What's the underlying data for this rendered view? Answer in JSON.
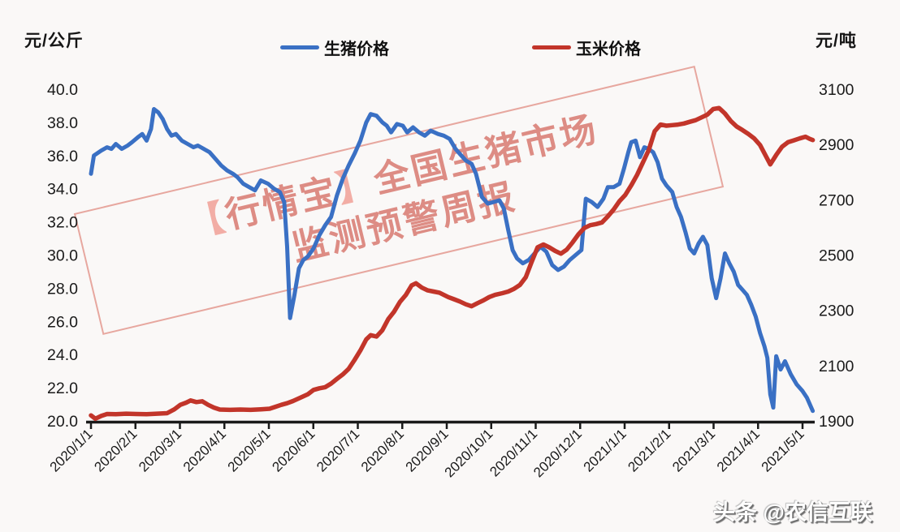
{
  "units": {
    "left": "元/公斤",
    "right": "元/吨"
  },
  "watermark": {
    "bracket_open": "【",
    "brand": "行情宝",
    "bracket_close": "】",
    "line1_rest": "全国生猪市场",
    "line2": "监测预警周报"
  },
  "credit": "头条 @农信互联",
  "colors": {
    "pig_line": "#3a70c4",
    "corn_line": "#c2352a",
    "axis": "#1a1a1a",
    "background": "#faf8f7",
    "watermark_pink": "#d67066"
  },
  "chart_data": {
    "type": "line",
    "title": "",
    "legend_position": "top",
    "grid": false,
    "x_axis": {
      "labels": [
        "2020/1/1",
        "2020/2/1",
        "2020/3/1",
        "2020/4/1",
        "2020/5/1",
        "2020/6/1",
        "2020/7/1",
        "2020/8/1",
        "2020/9/1",
        "2020/10/1",
        "2020/11/1",
        "2020/12/1",
        "2021/1/1",
        "2021/2/1",
        "2021/3/1",
        "2021/4/1",
        "2021/5/1"
      ]
    },
    "left_axis": {
      "label": "元/公斤",
      "min": 20,
      "max": 40,
      "ticks": [
        "40.0",
        "38.0",
        "36.0",
        "34.0",
        "32.0",
        "30.0",
        "28.0",
        "26.0",
        "24.0",
        "22.0",
        "20.0"
      ]
    },
    "right_axis": {
      "label": "元/吨",
      "min": 1900,
      "max": 3100,
      "ticks": [
        "3100",
        "2900",
        "2700",
        "2500",
        "2300",
        "2100",
        "1900"
      ]
    },
    "series": [
      {
        "name": "生猪价格",
        "axis": "left",
        "color": "#3a70c4",
        "unit": "元/公斤",
        "points": [
          [
            "2020/1/1",
            34.9
          ],
          [
            "2020/1/3",
            36.0
          ],
          [
            "2020/1/8",
            36.3
          ],
          [
            "2020/1/12",
            36.5
          ],
          [
            "2020/1/15",
            36.4
          ],
          [
            "2020/1/18",
            36.7
          ],
          [
            "2020/1/22",
            36.4
          ],
          [
            "2020/1/26",
            36.6
          ],
          [
            "2020/1/29",
            36.8
          ],
          [
            "2020/2/2",
            37.1
          ],
          [
            "2020/2/5",
            37.3
          ],
          [
            "2020/2/8",
            36.9
          ],
          [
            "2020/2/11",
            37.6
          ],
          [
            "2020/2/13",
            38.8
          ],
          [
            "2020/2/16",
            38.6
          ],
          [
            "2020/2/19",
            38.2
          ],
          [
            "2020/2/22",
            37.6
          ],
          [
            "2020/2/25",
            37.2
          ],
          [
            "2020/2/28",
            37.3
          ],
          [
            "2020/3/3",
            36.9
          ],
          [
            "2020/3/7",
            36.7
          ],
          [
            "2020/3/11",
            36.5
          ],
          [
            "2020/3/14",
            36.6
          ],
          [
            "2020/3/18",
            36.4
          ],
          [
            "2020/3/22",
            36.2
          ],
          [
            "2020/3/26",
            35.8
          ],
          [
            "2020/3/30",
            35.4
          ],
          [
            "2020/4/3",
            35.1
          ],
          [
            "2020/4/7",
            34.9
          ],
          [
            "2020/4/10",
            34.7
          ],
          [
            "2020/4/14",
            34.3
          ],
          [
            "2020/4/18",
            34.1
          ],
          [
            "2020/4/22",
            33.9
          ],
          [
            "2020/4/26",
            34.5
          ],
          [
            "2020/5/1",
            34.3
          ],
          [
            "2020/5/5",
            34.0
          ],
          [
            "2020/5/9",
            33.8
          ],
          [
            "2020/5/12",
            33.2
          ],
          [
            "2020/5/14",
            30.5
          ],
          [
            "2020/5/16",
            26.2
          ],
          [
            "2020/5/19",
            27.6
          ],
          [
            "2020/5/22",
            29.2
          ],
          [
            "2020/5/25",
            29.7
          ],
          [
            "2020/5/28",
            29.9
          ],
          [
            "2020/6/1",
            30.4
          ],
          [
            "2020/6/5",
            31.2
          ],
          [
            "2020/6/9",
            31.8
          ],
          [
            "2020/6/13",
            32.3
          ],
          [
            "2020/6/17",
            33.6
          ],
          [
            "2020/6/21",
            34.6
          ],
          [
            "2020/6/25",
            35.4
          ],
          [
            "2020/6/29",
            36.1
          ],
          [
            "2020/7/3",
            36.9
          ],
          [
            "2020/7/7",
            38.0
          ],
          [
            "2020/7/10",
            38.5
          ],
          [
            "2020/7/14",
            38.4
          ],
          [
            "2020/7/18",
            38.0
          ],
          [
            "2020/7/21",
            37.8
          ],
          [
            "2020/7/24",
            37.4
          ],
          [
            "2020/7/28",
            37.9
          ],
          [
            "2020/8/1",
            37.8
          ],
          [
            "2020/8/4",
            37.4
          ],
          [
            "2020/8/8",
            37.7
          ],
          [
            "2020/8/12",
            37.4
          ],
          [
            "2020/8/16",
            37.2
          ],
          [
            "2020/8/20",
            37.5
          ],
          [
            "2020/8/25",
            37.3
          ],
          [
            "2020/8/29",
            37.2
          ],
          [
            "2020/9/2",
            37.0
          ],
          [
            "2020/9/6",
            36.4
          ],
          [
            "2020/9/9",
            36.1
          ],
          [
            "2020/9/13",
            35.7
          ],
          [
            "2020/9/17",
            35.5
          ],
          [
            "2020/9/20",
            34.9
          ],
          [
            "2020/9/24",
            33.5
          ],
          [
            "2020/9/28",
            33.1
          ],
          [
            "2020/10/2",
            33.2
          ],
          [
            "2020/10/6",
            33.3
          ],
          [
            "2020/10/9",
            32.8
          ],
          [
            "2020/10/12",
            31.5
          ],
          [
            "2020/10/15",
            30.3
          ],
          [
            "2020/10/18",
            29.8
          ],
          [
            "2020/10/22",
            29.5
          ],
          [
            "2020/10/26",
            29.7
          ],
          [
            "2020/10/30",
            30.1
          ],
          [
            "2020/11/3",
            30.5
          ],
          [
            "2020/11/7",
            30.2
          ],
          [
            "2020/11/11",
            29.4
          ],
          [
            "2020/11/15",
            29.1
          ],
          [
            "2020/11/19",
            29.3
          ],
          [
            "2020/11/23",
            29.7
          ],
          [
            "2020/11/27",
            30.0
          ],
          [
            "2020/12/1",
            30.3
          ],
          [
            "2020/12/4",
            33.4
          ],
          [
            "2020/12/8",
            33.2
          ],
          [
            "2020/12/12",
            32.9
          ],
          [
            "2020/12/16",
            33.4
          ],
          [
            "2020/12/19",
            34.1
          ],
          [
            "2020/12/23",
            34.1
          ],
          [
            "2020/12/27",
            34.3
          ],
          [
            "2020/12/30",
            35.2
          ],
          [
            "2021/1/2",
            36.2
          ],
          [
            "2021/1/4",
            36.8
          ],
          [
            "2021/1/7",
            36.9
          ],
          [
            "2021/1/10",
            35.9
          ],
          [
            "2021/1/13",
            36.5
          ],
          [
            "2021/1/16",
            36.4
          ],
          [
            "2021/1/19",
            36.2
          ],
          [
            "2021/1/22",
            35.6
          ],
          [
            "2021/1/25",
            34.6
          ],
          [
            "2021/1/28",
            34.2
          ],
          [
            "2021/2/1",
            33.8
          ],
          [
            "2021/2/4",
            32.9
          ],
          [
            "2021/2/7",
            32.3
          ],
          [
            "2021/2/10",
            31.4
          ],
          [
            "2021/2/13",
            30.4
          ],
          [
            "2021/2/16",
            30.1
          ],
          [
            "2021/2/19",
            30.7
          ],
          [
            "2021/2/22",
            31.1
          ],
          [
            "2021/2/25",
            30.6
          ],
          [
            "2021/2/28",
            28.6
          ],
          [
            "2021/3/3",
            27.4
          ],
          [
            "2021/3/6",
            28.6
          ],
          [
            "2021/3/9",
            30.1
          ],
          [
            "2021/3/12",
            29.5
          ],
          [
            "2021/3/15",
            29.0
          ],
          [
            "2021/3/18",
            28.2
          ],
          [
            "2021/3/21",
            27.9
          ],
          [
            "2021/3/24",
            27.6
          ],
          [
            "2021/3/27",
            27.0
          ],
          [
            "2021/3/30",
            26.3
          ],
          [
            "2021/4/2",
            25.3
          ],
          [
            "2021/4/5",
            24.5
          ],
          [
            "2021/4/7",
            23.8
          ],
          [
            "2021/4/9",
            21.6
          ],
          [
            "2021/4/11",
            20.8
          ],
          [
            "2021/4/13",
            23.9
          ],
          [
            "2021/4/16",
            23.1
          ],
          [
            "2021/4/19",
            23.6
          ],
          [
            "2021/4/23",
            22.8
          ],
          [
            "2021/4/27",
            22.2
          ],
          [
            "2021/5/1",
            21.8
          ],
          [
            "2021/5/4",
            21.4
          ],
          [
            "2021/5/8",
            20.6
          ]
        ]
      },
      {
        "name": "玉米价格",
        "axis": "right",
        "color": "#c2352a",
        "unit": "元/吨",
        "points": [
          [
            "2020/1/1",
            1920
          ],
          [
            "2020/1/4",
            1908
          ],
          [
            "2020/1/8",
            1918
          ],
          [
            "2020/1/12",
            1925
          ],
          [
            "2020/1/18",
            1924
          ],
          [
            "2020/1/25",
            1926
          ],
          [
            "2020/2/1",
            1925
          ],
          [
            "2020/2/8",
            1924
          ],
          [
            "2020/2/15",
            1926
          ],
          [
            "2020/2/22",
            1928
          ],
          [
            "2020/2/27",
            1942
          ],
          [
            "2020/3/2",
            1958
          ],
          [
            "2020/3/6",
            1966
          ],
          [
            "2020/3/9",
            1974
          ],
          [
            "2020/3/13",
            1968
          ],
          [
            "2020/3/17",
            1971
          ],
          [
            "2020/3/21",
            1958
          ],
          [
            "2020/3/25",
            1948
          ],
          [
            "2020/3/29",
            1941
          ],
          [
            "2020/4/5",
            1940
          ],
          [
            "2020/4/12",
            1941
          ],
          [
            "2020/4/19",
            1940
          ],
          [
            "2020/4/26",
            1942
          ],
          [
            "2020/5/2",
            1944
          ],
          [
            "2020/5/6",
            1951
          ],
          [
            "2020/5/10",
            1958
          ],
          [
            "2020/5/14",
            1964
          ],
          [
            "2020/5/18",
            1972
          ],
          [
            "2020/5/23",
            1984
          ],
          [
            "2020/5/28",
            1996
          ],
          [
            "2020/6/1",
            2012
          ],
          [
            "2020/6/5",
            2018
          ],
          [
            "2020/6/9",
            2022
          ],
          [
            "2020/6/13",
            2035
          ],
          [
            "2020/6/17",
            2052
          ],
          [
            "2020/6/21",
            2068
          ],
          [
            "2020/6/25",
            2088
          ],
          [
            "2020/6/29",
            2120
          ],
          [
            "2020/7/3",
            2155
          ],
          [
            "2020/7/7",
            2195
          ],
          [
            "2020/7/10",
            2210
          ],
          [
            "2020/7/14",
            2205
          ],
          [
            "2020/7/18",
            2228
          ],
          [
            "2020/7/22",
            2268
          ],
          [
            "2020/7/26",
            2295
          ],
          [
            "2020/7/30",
            2330
          ],
          [
            "2020/8/3",
            2355
          ],
          [
            "2020/8/7",
            2390
          ],
          [
            "2020/8/10",
            2398
          ],
          [
            "2020/8/14",
            2382
          ],
          [
            "2020/8/18",
            2372
          ],
          [
            "2020/8/22",
            2368
          ],
          [
            "2020/8/26",
            2364
          ],
          [
            "2020/9/1",
            2348
          ],
          [
            "2020/9/5",
            2340
          ],
          [
            "2020/9/9",
            2332
          ],
          [
            "2020/9/13",
            2322
          ],
          [
            "2020/9/17",
            2315
          ],
          [
            "2020/9/21",
            2326
          ],
          [
            "2020/9/25",
            2336
          ],
          [
            "2020/9/29",
            2348
          ],
          [
            "2020/10/3",
            2356
          ],
          [
            "2020/10/8",
            2362
          ],
          [
            "2020/10/12",
            2368
          ],
          [
            "2020/10/16",
            2378
          ],
          [
            "2020/10/20",
            2392
          ],
          [
            "2020/10/24",
            2420
          ],
          [
            "2020/10/28",
            2475
          ],
          [
            "2020/11/1",
            2528
          ],
          [
            "2020/11/5",
            2538
          ],
          [
            "2020/11/9",
            2528
          ],
          [
            "2020/11/13",
            2515
          ],
          [
            "2020/11/17",
            2505
          ],
          [
            "2020/11/21",
            2520
          ],
          [
            "2020/11/25",
            2546
          ],
          [
            "2020/11/29",
            2575
          ],
          [
            "2020/12/3",
            2598
          ],
          [
            "2020/12/7",
            2608
          ],
          [
            "2020/12/11",
            2612
          ],
          [
            "2020/12/15",
            2618
          ],
          [
            "2020/12/19",
            2640
          ],
          [
            "2020/12/23",
            2665
          ],
          [
            "2020/12/27",
            2695
          ],
          [
            "2020/12/31",
            2718
          ],
          [
            "2021/1/4",
            2752
          ],
          [
            "2021/1/8",
            2790
          ],
          [
            "2021/1/12",
            2835
          ],
          [
            "2021/1/16",
            2880
          ],
          [
            "2021/1/20",
            2948
          ],
          [
            "2021/1/24",
            2972
          ],
          [
            "2021/1/28",
            2968
          ],
          [
            "2021/2/1",
            2970
          ],
          [
            "2021/2/5",
            2972
          ],
          [
            "2021/2/9",
            2976
          ],
          [
            "2021/2/13",
            2982
          ],
          [
            "2021/2/17",
            2988
          ],
          [
            "2021/2/21",
            2998
          ],
          [
            "2021/2/25",
            3008
          ],
          [
            "2021/3/1",
            3028
          ],
          [
            "2021/3/5",
            3032
          ],
          [
            "2021/3/9",
            3012
          ],
          [
            "2021/3/13",
            2985
          ],
          [
            "2021/3/17",
            2965
          ],
          [
            "2021/3/21",
            2952
          ],
          [
            "2021/3/25",
            2938
          ],
          [
            "2021/3/29",
            2922
          ],
          [
            "2021/4/2",
            2898
          ],
          [
            "2021/4/6",
            2858
          ],
          [
            "2021/4/9",
            2828
          ],
          [
            "2021/4/13",
            2862
          ],
          [
            "2021/4/17",
            2892
          ],
          [
            "2021/4/21",
            2908
          ],
          [
            "2021/4/25",
            2915
          ],
          [
            "2021/4/29",
            2922
          ],
          [
            "2021/5/3",
            2928
          ],
          [
            "2021/5/6",
            2920
          ],
          [
            "2021/5/8",
            2916
          ]
        ]
      }
    ]
  }
}
